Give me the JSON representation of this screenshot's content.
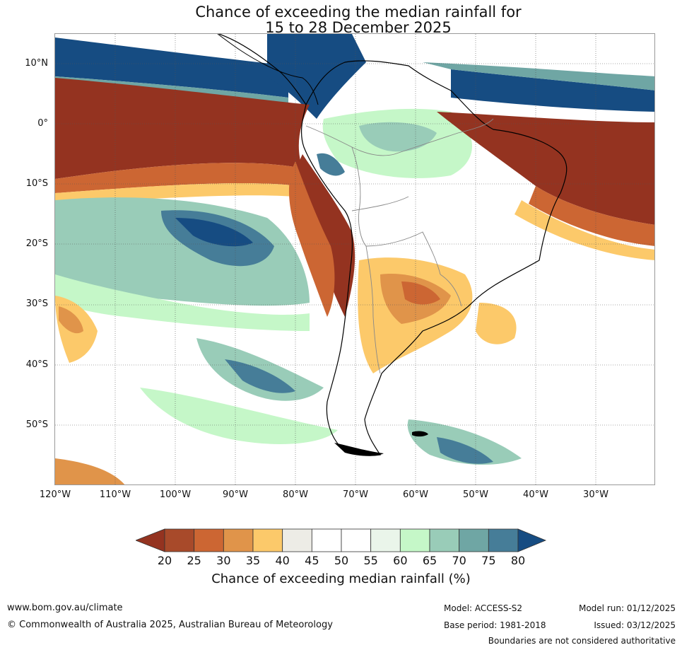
{
  "title": {
    "line1": "Chance of exceeding the median rainfall for",
    "line2": "15 to 28 December 2025"
  },
  "map": {
    "lat_labels": [
      "10°N",
      "0°",
      "10°S",
      "20°S",
      "30°S",
      "40°S",
      "50°S"
    ],
    "lon_labels": [
      "120°W",
      "110°W",
      "100°W",
      "90°W",
      "80°W",
      "70°W",
      "60°W",
      "50°W",
      "40°W",
      "30°W"
    ]
  },
  "colorbar": {
    "ticks": [
      "20",
      "25",
      "30",
      "35",
      "40",
      "45",
      "50",
      "55",
      "60",
      "65",
      "70",
      "75",
      "80"
    ],
    "colors": [
      "#a84a2a",
      "#cc6633",
      "#e0944a",
      "#fcc96a",
      "#edece6",
      "#ffffff",
      "#ffffff",
      "#eaf5ea",
      "#c5f7c8",
      "#99ccb8",
      "#6fa6a4",
      "#467d98"
    ],
    "under_color": "#943320",
    "over_color": "#164c82",
    "label": "Chance of exceeding median rainfall (%)"
  },
  "footer": {
    "url": "www.bom.gov.au/climate",
    "copyright": "© Commonwealth of Australia 2025, Australian Bureau of Meteorology",
    "model": "Model: ACCESS-S2",
    "base_period": "Base period: 1981-2018",
    "model_run": "Model run: 01/12/2025",
    "issued": "Issued: 03/12/2025",
    "disclaimer": "Boundaries are not considered authoritative"
  }
}
